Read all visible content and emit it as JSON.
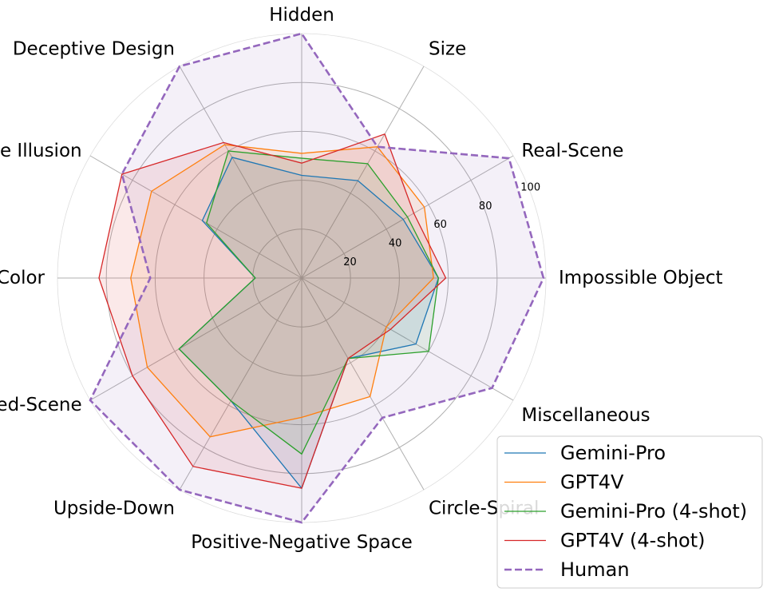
{
  "chart_data": {
    "type": "radar",
    "categories": [
      "Impossible Object",
      "Real-Scene",
      "Size",
      "Hidden",
      "Deceptive Design",
      "Angle Illusion",
      "Color",
      "Edited-Scene",
      "Upside-Down",
      "Positive-Negative Space",
      "Circle-Spiral",
      "Miscellaneous"
    ],
    "rlim": [
      0,
      100
    ],
    "rticks": [
      20,
      40,
      60,
      80,
      100
    ],
    "rtick_labels": [
      "20",
      "40",
      "60",
      "80",
      "100"
    ],
    "grid": true,
    "legend_position": "bottom-right",
    "series": [
      {
        "name": "Gemini-Pro",
        "color": "#1f77b4",
        "style": "solid",
        "values": [
          56,
          48,
          46,
          42,
          57,
          47,
          19,
          58,
          58,
          86,
          38,
          54
        ]
      },
      {
        "name": "GPT4V",
        "color": "#ff7f0e",
        "style": "solid",
        "values": [
          54,
          58,
          62,
          51,
          63,
          71,
          70,
          73,
          75,
          57,
          56,
          40
        ]
      },
      {
        "name": "Gemini-Pro (4-shot)",
        "color": "#2ca02c",
        "style": "solid",
        "values": [
          56,
          50,
          54,
          49,
          60,
          45,
          19,
          58,
          58,
          72,
          38,
          60
        ]
      },
      {
        "name": "GPT4V (4-shot)",
        "color": "#d62728",
        "style": "solid",
        "values": [
          59,
          53,
          68,
          47,
          64,
          85,
          83,
          80,
          89,
          86,
          38,
          42
        ]
      },
      {
        "name": "Human",
        "color": "#9467bd",
        "style": "dashed",
        "values": [
          99,
          98,
          62,
          100,
          100,
          85,
          62,
          100,
          100,
          100,
          66,
          90
        ]
      }
    ]
  }
}
